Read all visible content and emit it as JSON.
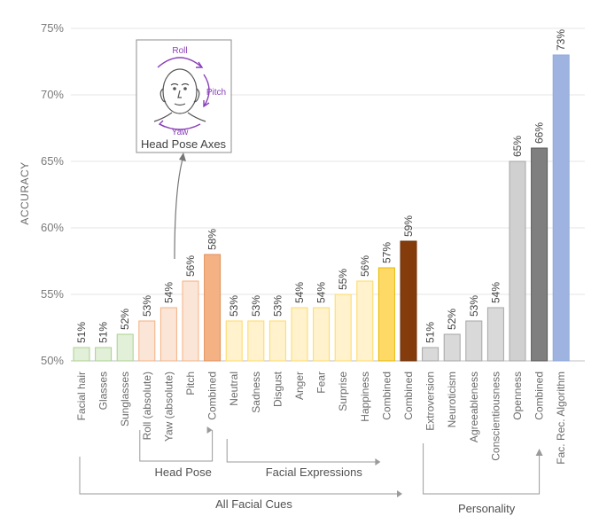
{
  "chart_data": {
    "type": "bar",
    "title": "",
    "xlabel": "",
    "ylabel": "ACCURACY",
    "ylim": [
      50,
      75
    ],
    "yticks": [
      "50%",
      "55%",
      "60%",
      "65%",
      "70%",
      "75%"
    ],
    "grid": true,
    "categories": [
      "Facial hair",
      "Glasses",
      "Sunglasses",
      "Roll (absolute)",
      "Yaw (absolute)",
      "Pitch",
      "Combined",
      "Neutral",
      "Sadness",
      "Disgust",
      "Anger",
      "Fear",
      "Surprise",
      "Happiness",
      "Combined",
      "Combined",
      "Extroversion",
      "Neuroticism",
      "Agreeableness",
      "Conscientiousness",
      "Openness",
      "Combined",
      "Fac. Rec. Algorithm"
    ],
    "values": [
      51,
      51,
      52,
      53,
      54,
      56,
      58,
      53,
      53,
      53,
      54,
      54,
      55,
      56,
      57,
      59,
      51,
      52,
      53,
      54,
      65,
      66,
      73
    ],
    "value_labels": [
      "51%",
      "51%",
      "52%",
      "53%",
      "54%",
      "56%",
      "58%",
      "53%",
      "53%",
      "53%",
      "54%",
      "54%",
      "55%",
      "56%",
      "57%",
      "59%",
      "51%",
      "52%",
      "53%",
      "54%",
      "65%",
      "66%",
      "73%"
    ],
    "bar_colors": [
      "#e2efd9",
      "#e2efd9",
      "#e2efd9",
      "#fbe5d6",
      "#fbe5d6",
      "#fbe5d6",
      "#f4b183",
      "#fff2cc",
      "#fff2cc",
      "#fff2cc",
      "#fff2cc",
      "#fff2cc",
      "#fff2cc",
      "#fff2cc",
      "#ffd966",
      "#843c0c",
      "#d9d9d9",
      "#d9d9d9",
      "#d9d9d9",
      "#d9d9d9",
      "#d0d0d0",
      "#7f7f7f",
      "#9eb3df"
    ],
    "bar_edge_colors": [
      "#a9d18e",
      "#a9d18e",
      "#a9d18e",
      "#f4b183",
      "#f4b183",
      "#f4b183",
      "#e0915c",
      "#ffd966",
      "#ffd966",
      "#ffd966",
      "#ffd966",
      "#ffd966",
      "#ffd966",
      "#ffd966",
      "#e6b800",
      "#6b2f08",
      "#a6a6a6",
      "#a6a6a6",
      "#a6a6a6",
      "#a6a6a6",
      "#a6a6a6",
      "#595959",
      "#8faadc"
    ],
    "groups": {
      "head_pose": "Head Pose",
      "facial_expressions": "Facial Expressions",
      "all_facial_cues": "All Facial Cues",
      "personality": "Personality"
    },
    "inset": {
      "title": "Head Pose Axes",
      "labels": {
        "roll": "Roll",
        "pitch": "Pitch",
        "yaw": "Yaw"
      },
      "icon": "head-outline-icon"
    }
  }
}
